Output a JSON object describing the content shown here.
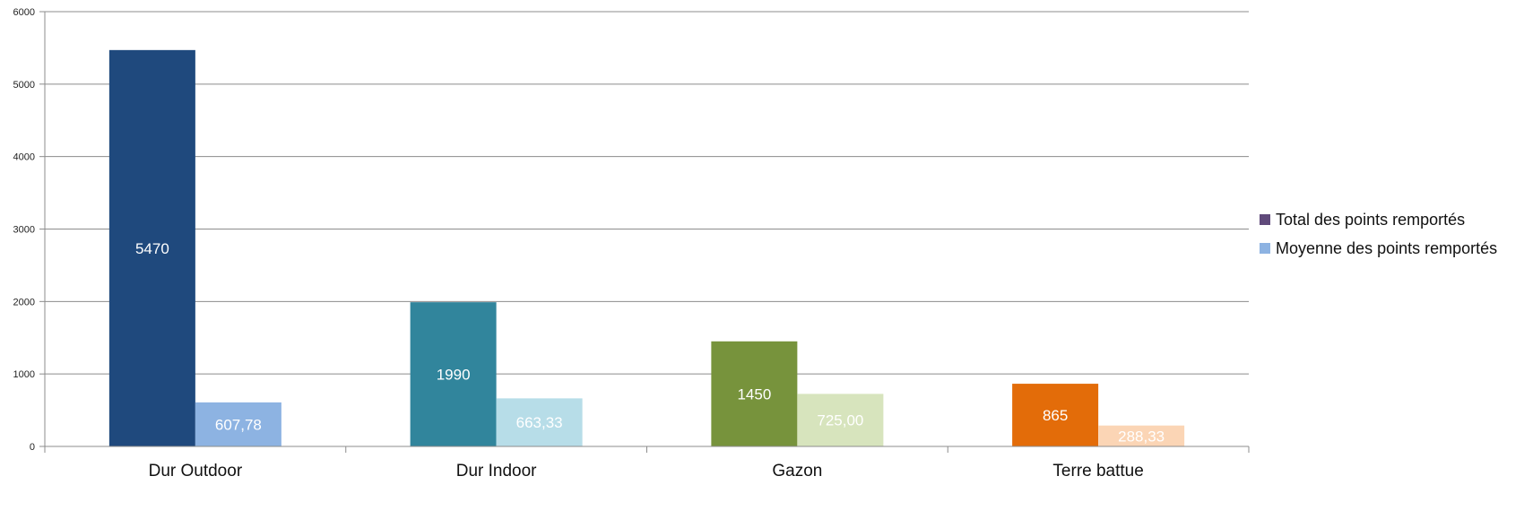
{
  "chart_data": {
    "type": "bar",
    "categories": [
      "Dur Outdoor",
      "Dur Indoor",
      "Gazon",
      "Terre battue"
    ],
    "series": [
      {
        "name": "Total des points remportés",
        "values": [
          5470,
          1990,
          1450,
          865
        ],
        "labels": [
          "5470",
          "1990",
          "1450",
          "865"
        ],
        "colors": [
          "#1f497d",
          "#31859c",
          "#77933c",
          "#e36c09"
        ],
        "legend_color": "#604a7b"
      },
      {
        "name": "Moyenne des points remportés",
        "values": [
          607.78,
          663.33,
          725.0,
          288.33
        ],
        "labels": [
          "607,78",
          "663,33",
          "725,00",
          "288,33"
        ],
        "colors": [
          "#8db3e2",
          "#b7dde8",
          "#d7e4bd",
          "#fbd5b5"
        ],
        "legend_color": "#8db3e2"
      }
    ],
    "yticks": [
      "0",
      "1000",
      "2000",
      "3000",
      "4000",
      "5000",
      "6000"
    ],
    "ylim": [
      0,
      6000
    ],
    "grid": true,
    "legend_position": "right"
  }
}
